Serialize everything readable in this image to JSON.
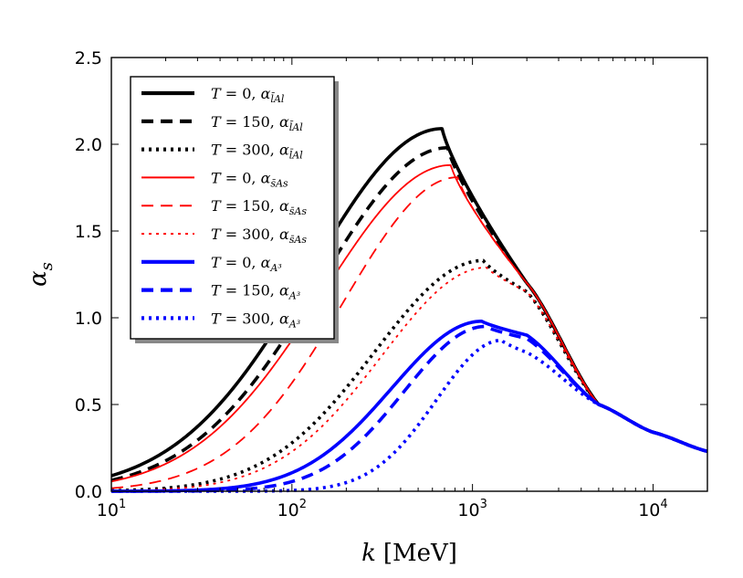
{
  "chart_data": {
    "type": "line",
    "xscale": "log",
    "xlim": [
      10,
      20000
    ],
    "ylim": [
      0.0,
      2.5
    ],
    "xlabel_var": "k",
    "xlabel_unit": "[MeV]",
    "ylabel_var": "α",
    "ylabel_sub": "s",
    "x_ticks": [
      {
        "value": 10,
        "base": "10",
        "exp": "1"
      },
      {
        "value": 100,
        "base": "10",
        "exp": "2"
      },
      {
        "value": 1000,
        "base": "10",
        "exp": "3"
      },
      {
        "value": 10000,
        "base": "10",
        "exp": "4"
      }
    ],
    "y_ticks": [
      {
        "value": 0.0,
        "label": "0.0"
      },
      {
        "value": 0.5,
        "label": "0.5"
      },
      {
        "value": 1.0,
        "label": "1.0"
      },
      {
        "value": 1.5,
        "label": "1.5"
      },
      {
        "value": 2.0,
        "label": "2.0"
      },
      {
        "value": 2.5,
        "label": "2.5"
      }
    ],
    "legend_position": "top-left",
    "series": [
      {
        "id": "lAl-T0",
        "T": "0",
        "alpha": "α",
        "vertex": "l̄Al",
        "color": "#000000",
        "style": "solid",
        "weight": "thick",
        "peak_k": 680,
        "peak_value": 2.09,
        "width": 0.73,
        "skew": 0.12,
        "tail_points": [
          [
            2000,
            1.2
          ],
          [
            5000,
            0.5
          ],
          [
            10000,
            0.34
          ],
          [
            20000,
            0.23
          ]
        ]
      },
      {
        "id": "lAl-T150",
        "T": "150",
        "alpha": "α",
        "vertex": "l̄Al",
        "color": "#000000",
        "style": "dashed",
        "weight": "thick",
        "peak_k": 730,
        "peak_value": 1.98,
        "width": 0.71,
        "skew": 0.12,
        "tail_points": [
          [
            2000,
            1.2
          ],
          [
            5000,
            0.5
          ],
          [
            10000,
            0.34
          ],
          [
            20000,
            0.23
          ]
        ]
      },
      {
        "id": "lAl-T300",
        "T": "300",
        "alpha": "α",
        "vertex": "l̄Al",
        "color": "#000000",
        "style": "dotted",
        "weight": "thick",
        "peak_k": 1150,
        "peak_value": 1.33,
        "width": 0.6,
        "skew": 0.1,
        "tail_points": [
          [
            2000,
            1.15
          ],
          [
            5000,
            0.5
          ],
          [
            10000,
            0.34
          ],
          [
            20000,
            0.23
          ]
        ]
      },
      {
        "id": "sAs-T0",
        "T": "0",
        "alpha": "α",
        "vertex": "s̄As",
        "color": "#ff0000",
        "style": "solid",
        "weight": "thin",
        "peak_k": 760,
        "peak_value": 1.88,
        "width": 0.71,
        "skew": 0.12,
        "tail_points": [
          [
            2000,
            1.2
          ],
          [
            5000,
            0.5
          ],
          [
            10000,
            0.34
          ],
          [
            20000,
            0.23
          ]
        ]
      },
      {
        "id": "sAs-T150",
        "T": "150",
        "alpha": "α",
        "vertex": "s̄As",
        "color": "#ff0000",
        "style": "dashed",
        "weight": "thin",
        "peak_k": 830,
        "peak_value": 1.81,
        "width": 0.63,
        "skew": 0.12,
        "tail_points": [
          [
            2000,
            1.2
          ],
          [
            5000,
            0.5
          ],
          [
            10000,
            0.34
          ],
          [
            20000,
            0.23
          ]
        ]
      },
      {
        "id": "sAs-T300",
        "T": "300",
        "alpha": "α",
        "vertex": "s̄As",
        "color": "#ff0000",
        "style": "dotted",
        "weight": "thin",
        "peak_k": 1200,
        "peak_value": 1.29,
        "width": 0.58,
        "skew": 0.1,
        "tail_points": [
          [
            2000,
            1.15
          ],
          [
            5000,
            0.5
          ],
          [
            10000,
            0.34
          ],
          [
            20000,
            0.23
          ]
        ]
      },
      {
        "id": "A3-T0",
        "T": "0",
        "alpha": "α",
        "vertex": "A³",
        "color": "#0000ff",
        "style": "solid",
        "weight": "thick",
        "peak_k": 1130,
        "peak_value": 0.98,
        "width": 0.5,
        "skew": 0.1,
        "tail_points": [
          [
            2000,
            0.9
          ],
          [
            5000,
            0.5
          ],
          [
            10000,
            0.34
          ],
          [
            20000,
            0.23
          ]
        ]
      },
      {
        "id": "A3-T150",
        "T": "150",
        "alpha": "α",
        "vertex": "A³",
        "color": "#0000ff",
        "style": "dashed",
        "weight": "thick",
        "peak_k": 1180,
        "peak_value": 0.95,
        "width": 0.45,
        "skew": 0.1,
        "tail_points": [
          [
            2000,
            0.88
          ],
          [
            5000,
            0.5
          ],
          [
            10000,
            0.34
          ],
          [
            20000,
            0.23
          ]
        ]
      },
      {
        "id": "A3-T300",
        "T": "300",
        "alpha": "α",
        "vertex": "A³",
        "color": "#0000ff",
        "style": "dotted",
        "weight": "thick",
        "peak_k": 1450,
        "peak_value": 0.87,
        "width": 0.36,
        "skew": 0.08,
        "tail_points": [
          [
            2000,
            0.8
          ],
          [
            5000,
            0.5
          ],
          [
            10000,
            0.34
          ],
          [
            20000,
            0.23
          ]
        ]
      }
    ]
  }
}
